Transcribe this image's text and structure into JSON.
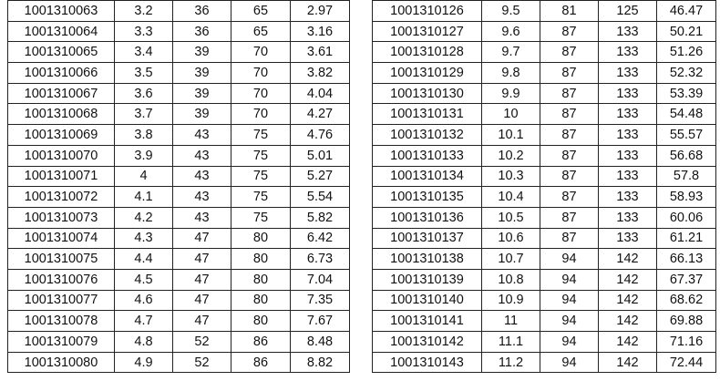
{
  "tables": [
    {
      "rows": [
        [
          "1001310063",
          "3.2",
          "36",
          "65",
          "2.97"
        ],
        [
          "1001310064",
          "3.3",
          "36",
          "65",
          "3.16"
        ],
        [
          "1001310065",
          "3.4",
          "39",
          "70",
          "3.61"
        ],
        [
          "1001310066",
          "3.5",
          "39",
          "70",
          "3.82"
        ],
        [
          "1001310067",
          "3.6",
          "39",
          "70",
          "4.04"
        ],
        [
          "1001310068",
          "3.7",
          "39",
          "70",
          "4.27"
        ],
        [
          "1001310069",
          "3.8",
          "43",
          "75",
          "4.76"
        ],
        [
          "1001310070",
          "3.9",
          "43",
          "75",
          "5.01"
        ],
        [
          "1001310071",
          "4",
          "43",
          "75",
          "5.27"
        ],
        [
          "1001310072",
          "4.1",
          "43",
          "75",
          "5.54"
        ],
        [
          "1001310073",
          "4.2",
          "43",
          "75",
          "5.82"
        ],
        [
          "1001310074",
          "4.3",
          "47",
          "80",
          "6.42"
        ],
        [
          "1001310075",
          "4.4",
          "47",
          "80",
          "6.73"
        ],
        [
          "1001310076",
          "4.5",
          "47",
          "80",
          "7.04"
        ],
        [
          "1001310077",
          "4.6",
          "47",
          "80",
          "7.35"
        ],
        [
          "1001310078",
          "4.7",
          "47",
          "80",
          "7.67"
        ],
        [
          "1001310079",
          "4.8",
          "52",
          "86",
          "8.48"
        ],
        [
          "1001310080",
          "4.9",
          "52",
          "86",
          "8.82"
        ]
      ]
    },
    {
      "rows": [
        [
          "1001310126",
          "9.5",
          "81",
          "125",
          "46.47"
        ],
        [
          "1001310127",
          "9.6",
          "87",
          "133",
          "50.21"
        ],
        [
          "1001310128",
          "9.7",
          "87",
          "133",
          "51.26"
        ],
        [
          "1001310129",
          "9.8",
          "87",
          "133",
          "52.32"
        ],
        [
          "1001310130",
          "9.9",
          "87",
          "133",
          "53.39"
        ],
        [
          "1001310131",
          "10",
          "87",
          "133",
          "54.48"
        ],
        [
          "1001310132",
          "10.1",
          "87",
          "133",
          "55.57"
        ],
        [
          "1001310133",
          "10.2",
          "87",
          "133",
          "56.68"
        ],
        [
          "1001310134",
          "10.3",
          "87",
          "133",
          "57.8"
        ],
        [
          "1001310135",
          "10.4",
          "87",
          "133",
          "58.93"
        ],
        [
          "1001310136",
          "10.5",
          "87",
          "133",
          "60.06"
        ],
        [
          "1001310137",
          "10.6",
          "87",
          "133",
          "61.21"
        ],
        [
          "1001310138",
          "10.7",
          "94",
          "142",
          "66.13"
        ],
        [
          "1001310139",
          "10.8",
          "94",
          "142",
          "67.37"
        ],
        [
          "1001310140",
          "10.9",
          "94",
          "142",
          "68.62"
        ],
        [
          "1001310141",
          "11",
          "94",
          "142",
          "69.88"
        ],
        [
          "1001310142",
          "11.1",
          "94",
          "142",
          "71.16"
        ],
        [
          "1001310143",
          "11.2",
          "94",
          "142",
          "72.44"
        ]
      ]
    }
  ]
}
